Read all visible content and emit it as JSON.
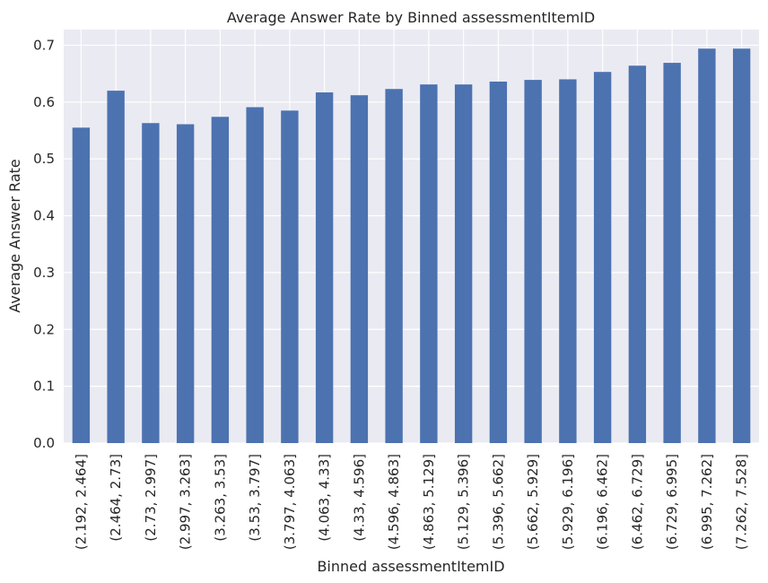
{
  "chart_data": {
    "type": "bar",
    "title": "Average Answer Rate by Binned assessmentItemID",
    "xlabel": "Binned assessmentItemID",
    "ylabel": "Average Answer Rate",
    "categories": [
      "(2.192, 2.464]",
      "(2.464, 2.73]",
      "(2.73, 2.997]",
      "(2.997, 3.263]",
      "(3.263, 3.53]",
      "(3.53, 3.797]",
      "(3.797, 4.063]",
      "(4.063, 4.33]",
      "(4.33, 4.596]",
      "(4.596, 4.863]",
      "(4.863, 5.129]",
      "(5.129, 5.396]",
      "(5.396, 5.662]",
      "(5.662, 5.929]",
      "(5.929, 6.196]",
      "(6.196, 6.462]",
      "(6.462, 6.729]",
      "(6.729, 6.995]",
      "(6.995, 7.262]",
      "(7.262, 7.528]"
    ],
    "values": [
      0.555,
      0.62,
      0.563,
      0.561,
      0.574,
      0.591,
      0.585,
      0.617,
      0.612,
      0.623,
      0.631,
      0.631,
      0.636,
      0.639,
      0.64,
      0.653,
      0.664,
      0.669,
      0.694,
      0.694
    ],
    "ylim": [
      0,
      0.7275
    ],
    "yticks": [
      "0.0",
      "0.1",
      "0.2",
      "0.3",
      "0.4",
      "0.5",
      "0.6",
      "0.7"
    ],
    "grid": true,
    "legend": "none",
    "colors": {
      "bar": "#4c72b0",
      "plot_bg": "#eaeaf2",
      "grid": "#ffffff",
      "text": "#262626"
    }
  }
}
